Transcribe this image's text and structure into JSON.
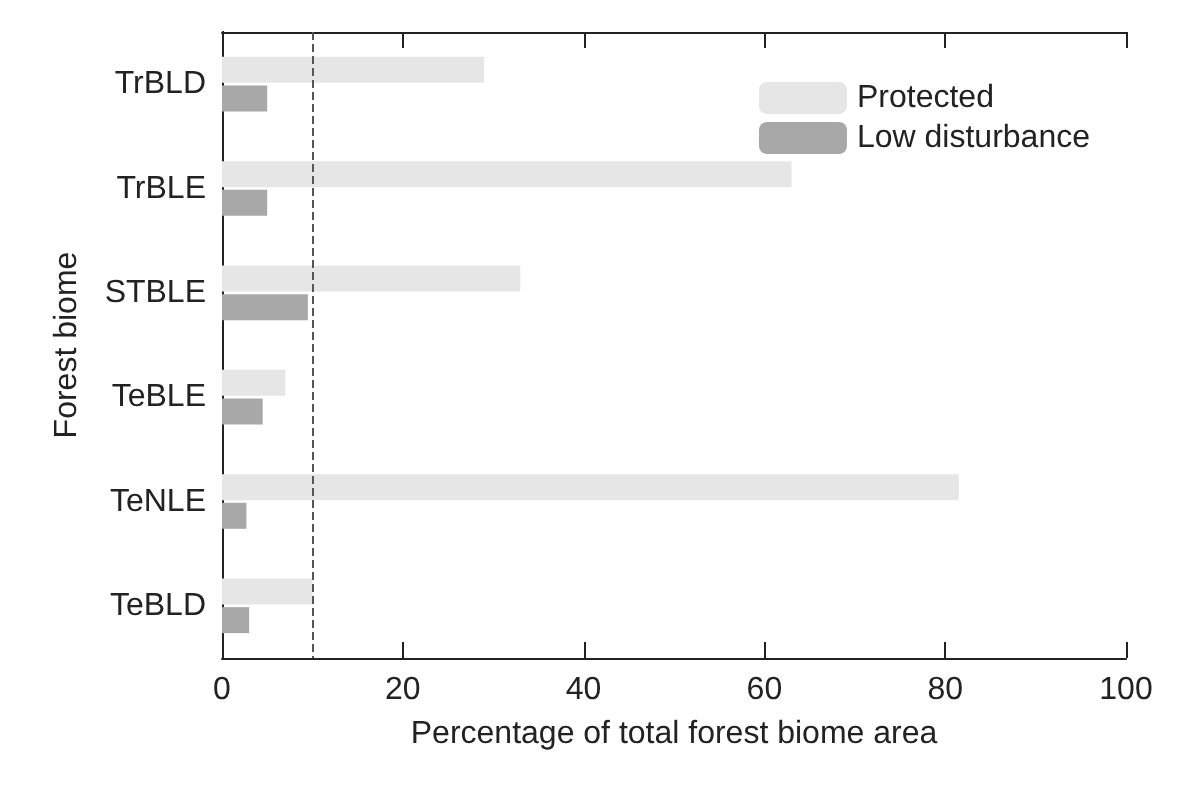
{
  "chart_data": {
    "type": "bar",
    "orientation": "horizontal",
    "xlabel": "Percentage of total forest biome area",
    "ylabel": "Forest biome",
    "categories": [
      "TrBLD",
      "TrBLE",
      "STBLE",
      "TeBLE",
      "TeNLE",
      "TeBLD"
    ],
    "series": [
      {
        "name": "Protected",
        "color": "#e6e6e6",
        "values": [
          29,
          63,
          33,
          7,
          81.5,
          10
        ]
      },
      {
        "name": "Low disturbance",
        "color": "#a8a8a8",
        "values": [
          5,
          5,
          9.5,
          4.5,
          2.7,
          3
        ]
      }
    ],
    "xlim": [
      0,
      100
    ],
    "xticks": [
      0,
      20,
      40,
      60,
      80,
      100
    ],
    "ref_lines": [
      {
        "axis": "x",
        "value": 10,
        "line_style": "dashed",
        "color": "#555555"
      }
    ],
    "legend": "top right",
    "grid": false
  }
}
